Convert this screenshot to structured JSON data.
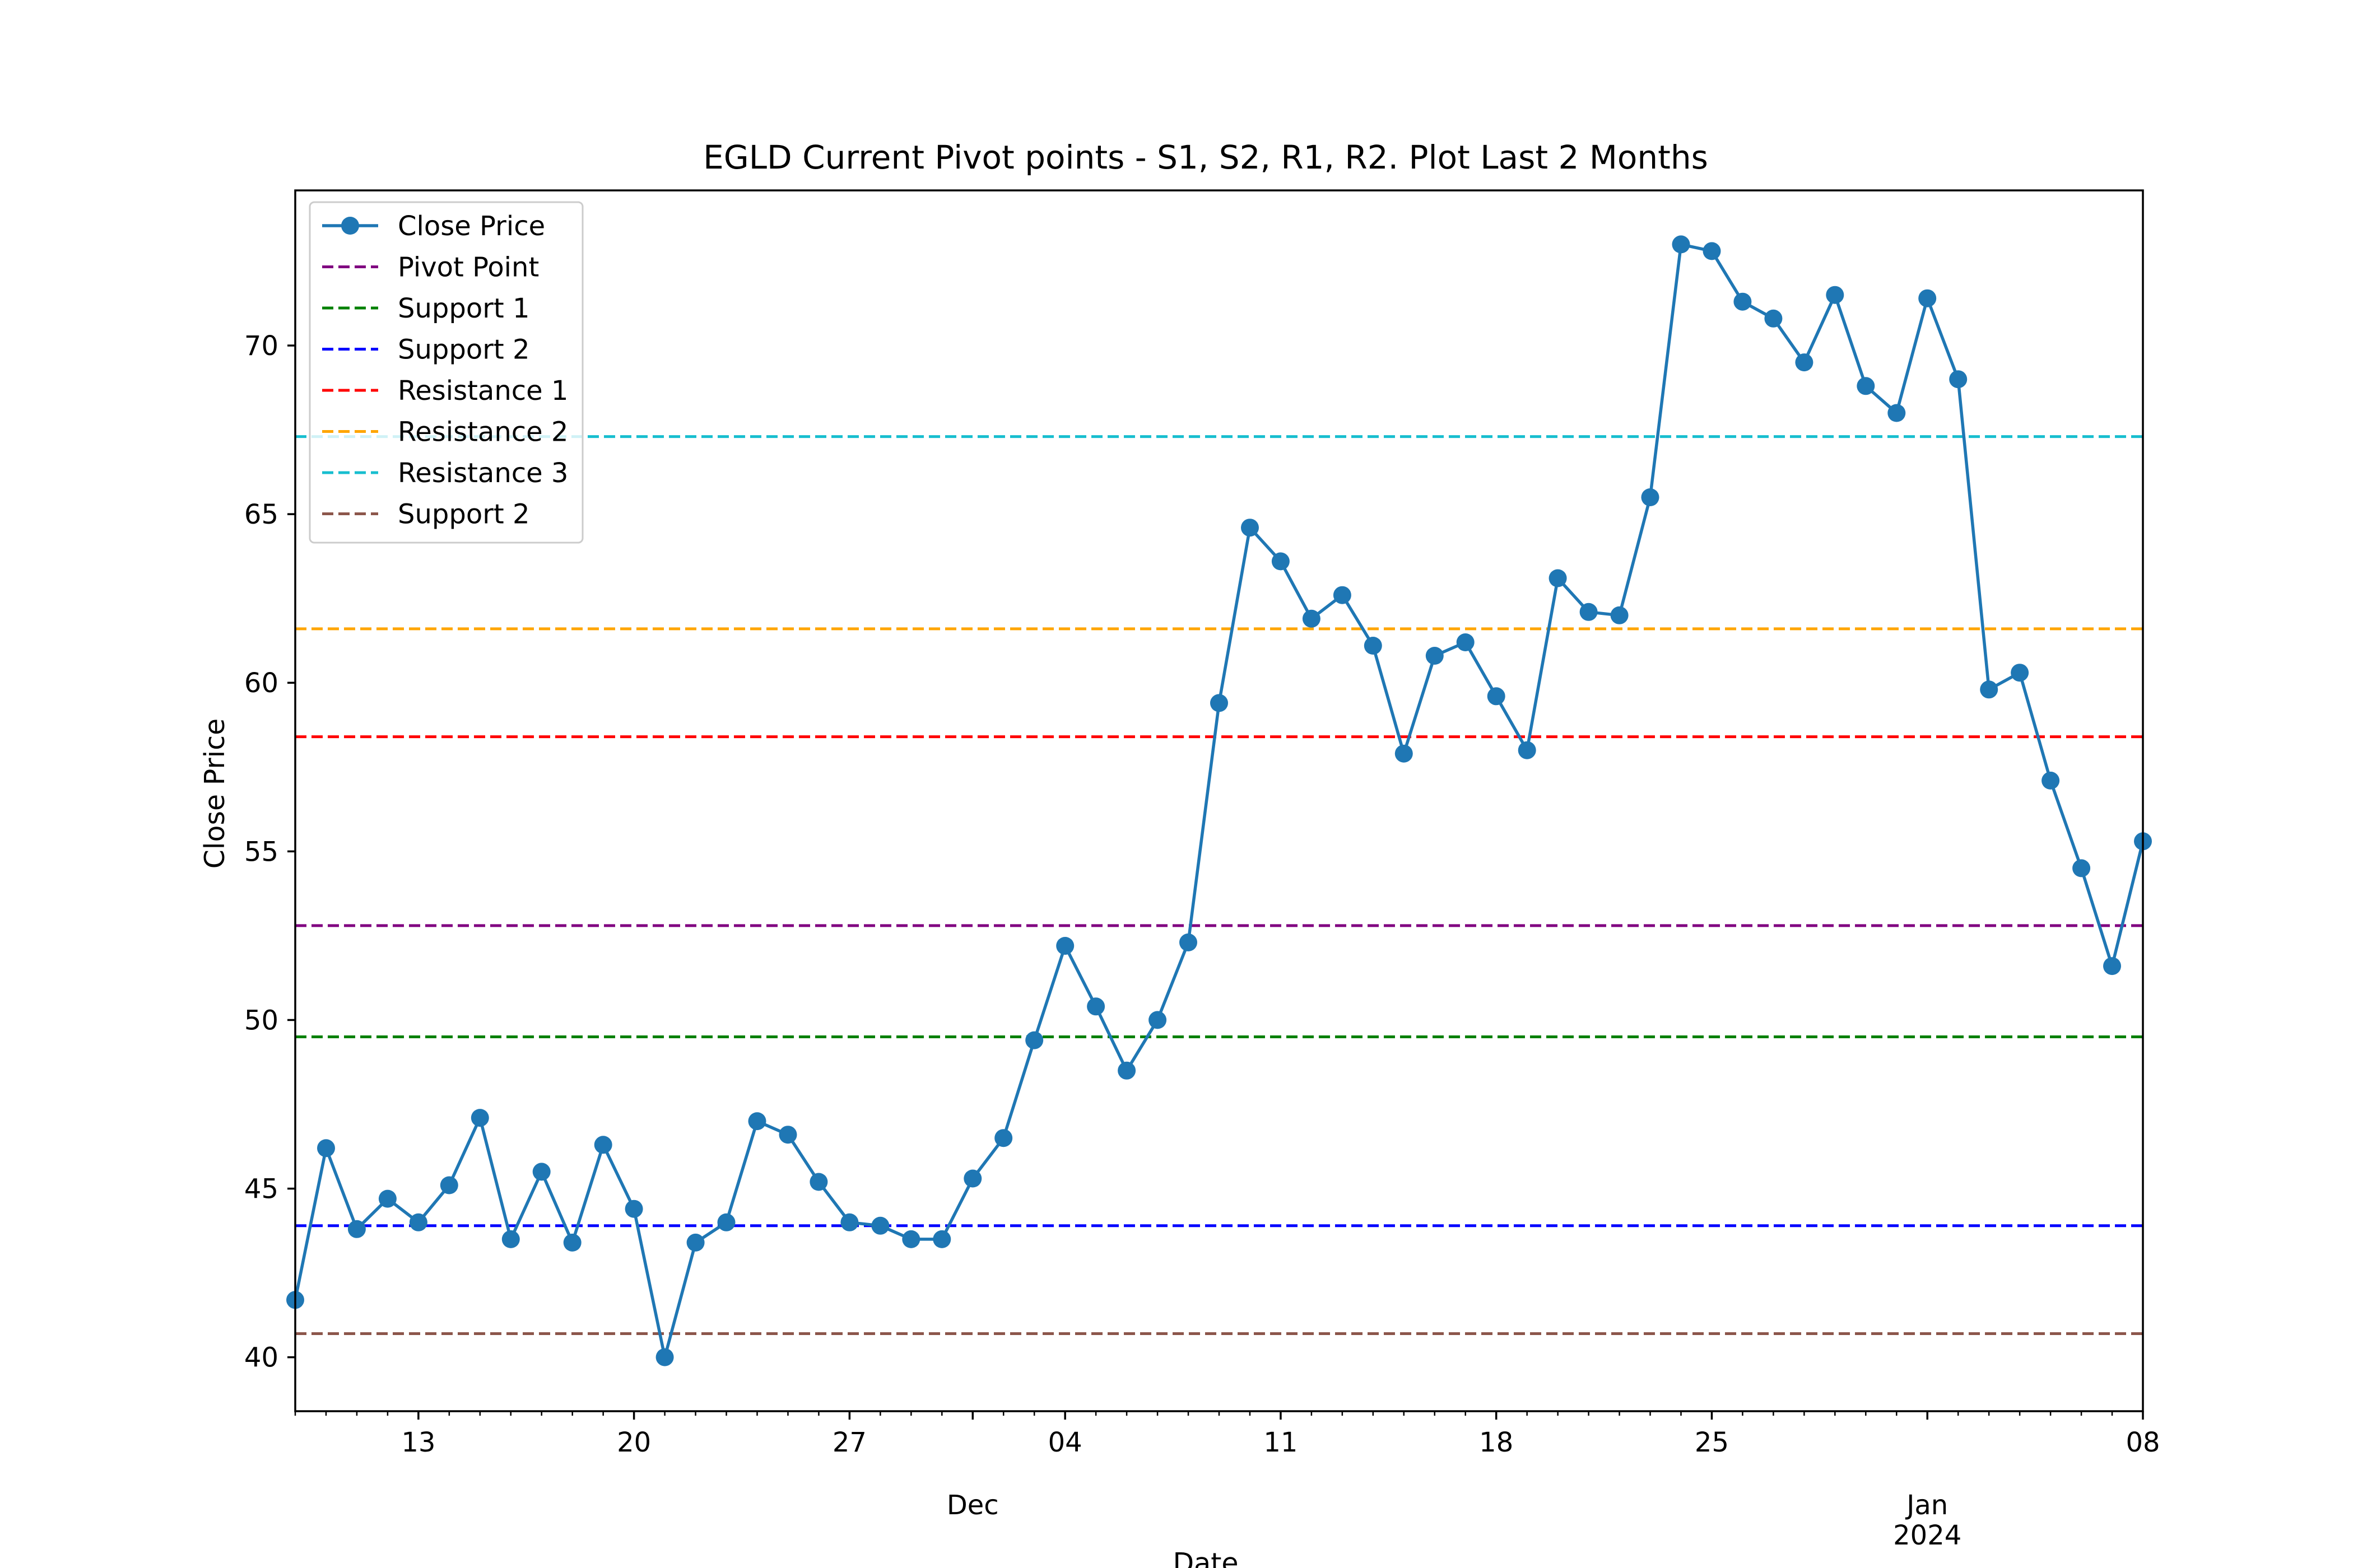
{
  "chart_data": {
    "type": "line",
    "title": "EGLD Current Pivot points - S1, S2, R1, R2. Plot Last 2 Months",
    "xlabel": "Date",
    "ylabel": "Close Price",
    "xlim": [
      "2023-11-09",
      "2024-01-08"
    ],
    "ylim": [
      38.4,
      74.6
    ],
    "grid": false,
    "legend_position": "top-left",
    "y_ticks": [
      40,
      45,
      50,
      55,
      60,
      65,
      70
    ],
    "x_major_ticks": [
      {
        "date": "2023-11-13",
        "label": "13"
      },
      {
        "date": "2023-11-20",
        "label": "20"
      },
      {
        "date": "2023-11-27",
        "label": "27"
      },
      {
        "date": "2023-12-04",
        "label": "04"
      },
      {
        "date": "2023-12-11",
        "label": "11"
      },
      {
        "date": "2023-12-18",
        "label": "18"
      },
      {
        "date": "2023-12-25",
        "label": "25"
      },
      {
        "date": "2024-01-08",
        "label": "08"
      }
    ],
    "x_month_labels": [
      {
        "date": "2023-12-01",
        "label": "Dec"
      },
      {
        "date": "2024-01-01",
        "label": "Jan"
      }
    ],
    "x_year_labels": [
      {
        "date": "2024-01-01",
        "label": "2024"
      }
    ],
    "series": [
      {
        "name": "Close Price",
        "color": "#1f77b4",
        "style": "solid-marker",
        "x": [
          "2023-11-09",
          "2023-11-10",
          "2023-11-11",
          "2023-11-12",
          "2023-11-13",
          "2023-11-14",
          "2023-11-15",
          "2023-11-16",
          "2023-11-17",
          "2023-11-18",
          "2023-11-19",
          "2023-11-20",
          "2023-11-21",
          "2023-11-22",
          "2023-11-23",
          "2023-11-24",
          "2023-11-25",
          "2023-11-26",
          "2023-11-27",
          "2023-11-28",
          "2023-11-29",
          "2023-11-30",
          "2023-12-01",
          "2023-12-02",
          "2023-12-03",
          "2023-12-04",
          "2023-12-05",
          "2023-12-06",
          "2023-12-07",
          "2023-12-08",
          "2023-12-09",
          "2023-12-10",
          "2023-12-11",
          "2023-12-12",
          "2023-12-13",
          "2023-12-14",
          "2023-12-15",
          "2023-12-16",
          "2023-12-17",
          "2023-12-18",
          "2023-12-19",
          "2023-12-20",
          "2023-12-21",
          "2023-12-22",
          "2023-12-23",
          "2023-12-24",
          "2023-12-25",
          "2023-12-26",
          "2023-12-27",
          "2023-12-28",
          "2023-12-29",
          "2023-12-30",
          "2023-12-31",
          "2024-01-01",
          "2024-01-02",
          "2024-01-03",
          "2024-01-04",
          "2024-01-05",
          "2024-01-06",
          "2024-01-07",
          "2024-01-08"
        ],
        "values": [
          41.7,
          46.2,
          43.8,
          44.7,
          44.0,
          45.1,
          47.1,
          43.5,
          45.5,
          43.4,
          46.3,
          44.4,
          40.0,
          43.4,
          44.0,
          47.0,
          46.6,
          45.2,
          44.0,
          43.9,
          43.5,
          43.5,
          45.3,
          46.5,
          49.4,
          52.2,
          50.4,
          48.5,
          50.0,
          52.3,
          59.4,
          64.6,
          63.6,
          61.9,
          62.6,
          61.1,
          57.9,
          60.8,
          61.2,
          59.6,
          58.0,
          63.1,
          62.1,
          62.0,
          65.5,
          73.0,
          72.8,
          71.3,
          70.8,
          69.5,
          71.5,
          68.8,
          68.0,
          71.4,
          69.0,
          59.8,
          60.3,
          57.1,
          54.5,
          51.6,
          55.3
        ]
      }
    ],
    "levels": [
      {
        "name": "Pivot Point",
        "value": 52.8,
        "color": "#800080"
      },
      {
        "name": "Support 1",
        "value": 49.5,
        "color": "#008000"
      },
      {
        "name": "Support 2",
        "value": 43.9,
        "color": "#0000ff"
      },
      {
        "name": "Resistance 1",
        "value": 58.4,
        "color": "#ff0000"
      },
      {
        "name": "Resistance 2",
        "value": 61.6,
        "color": "#ffa500"
      },
      {
        "name": "Resistance 3",
        "value": 67.3,
        "color": "#17becf"
      },
      {
        "name": "Support 2",
        "value": 40.7,
        "color": "#8c564b"
      }
    ]
  }
}
